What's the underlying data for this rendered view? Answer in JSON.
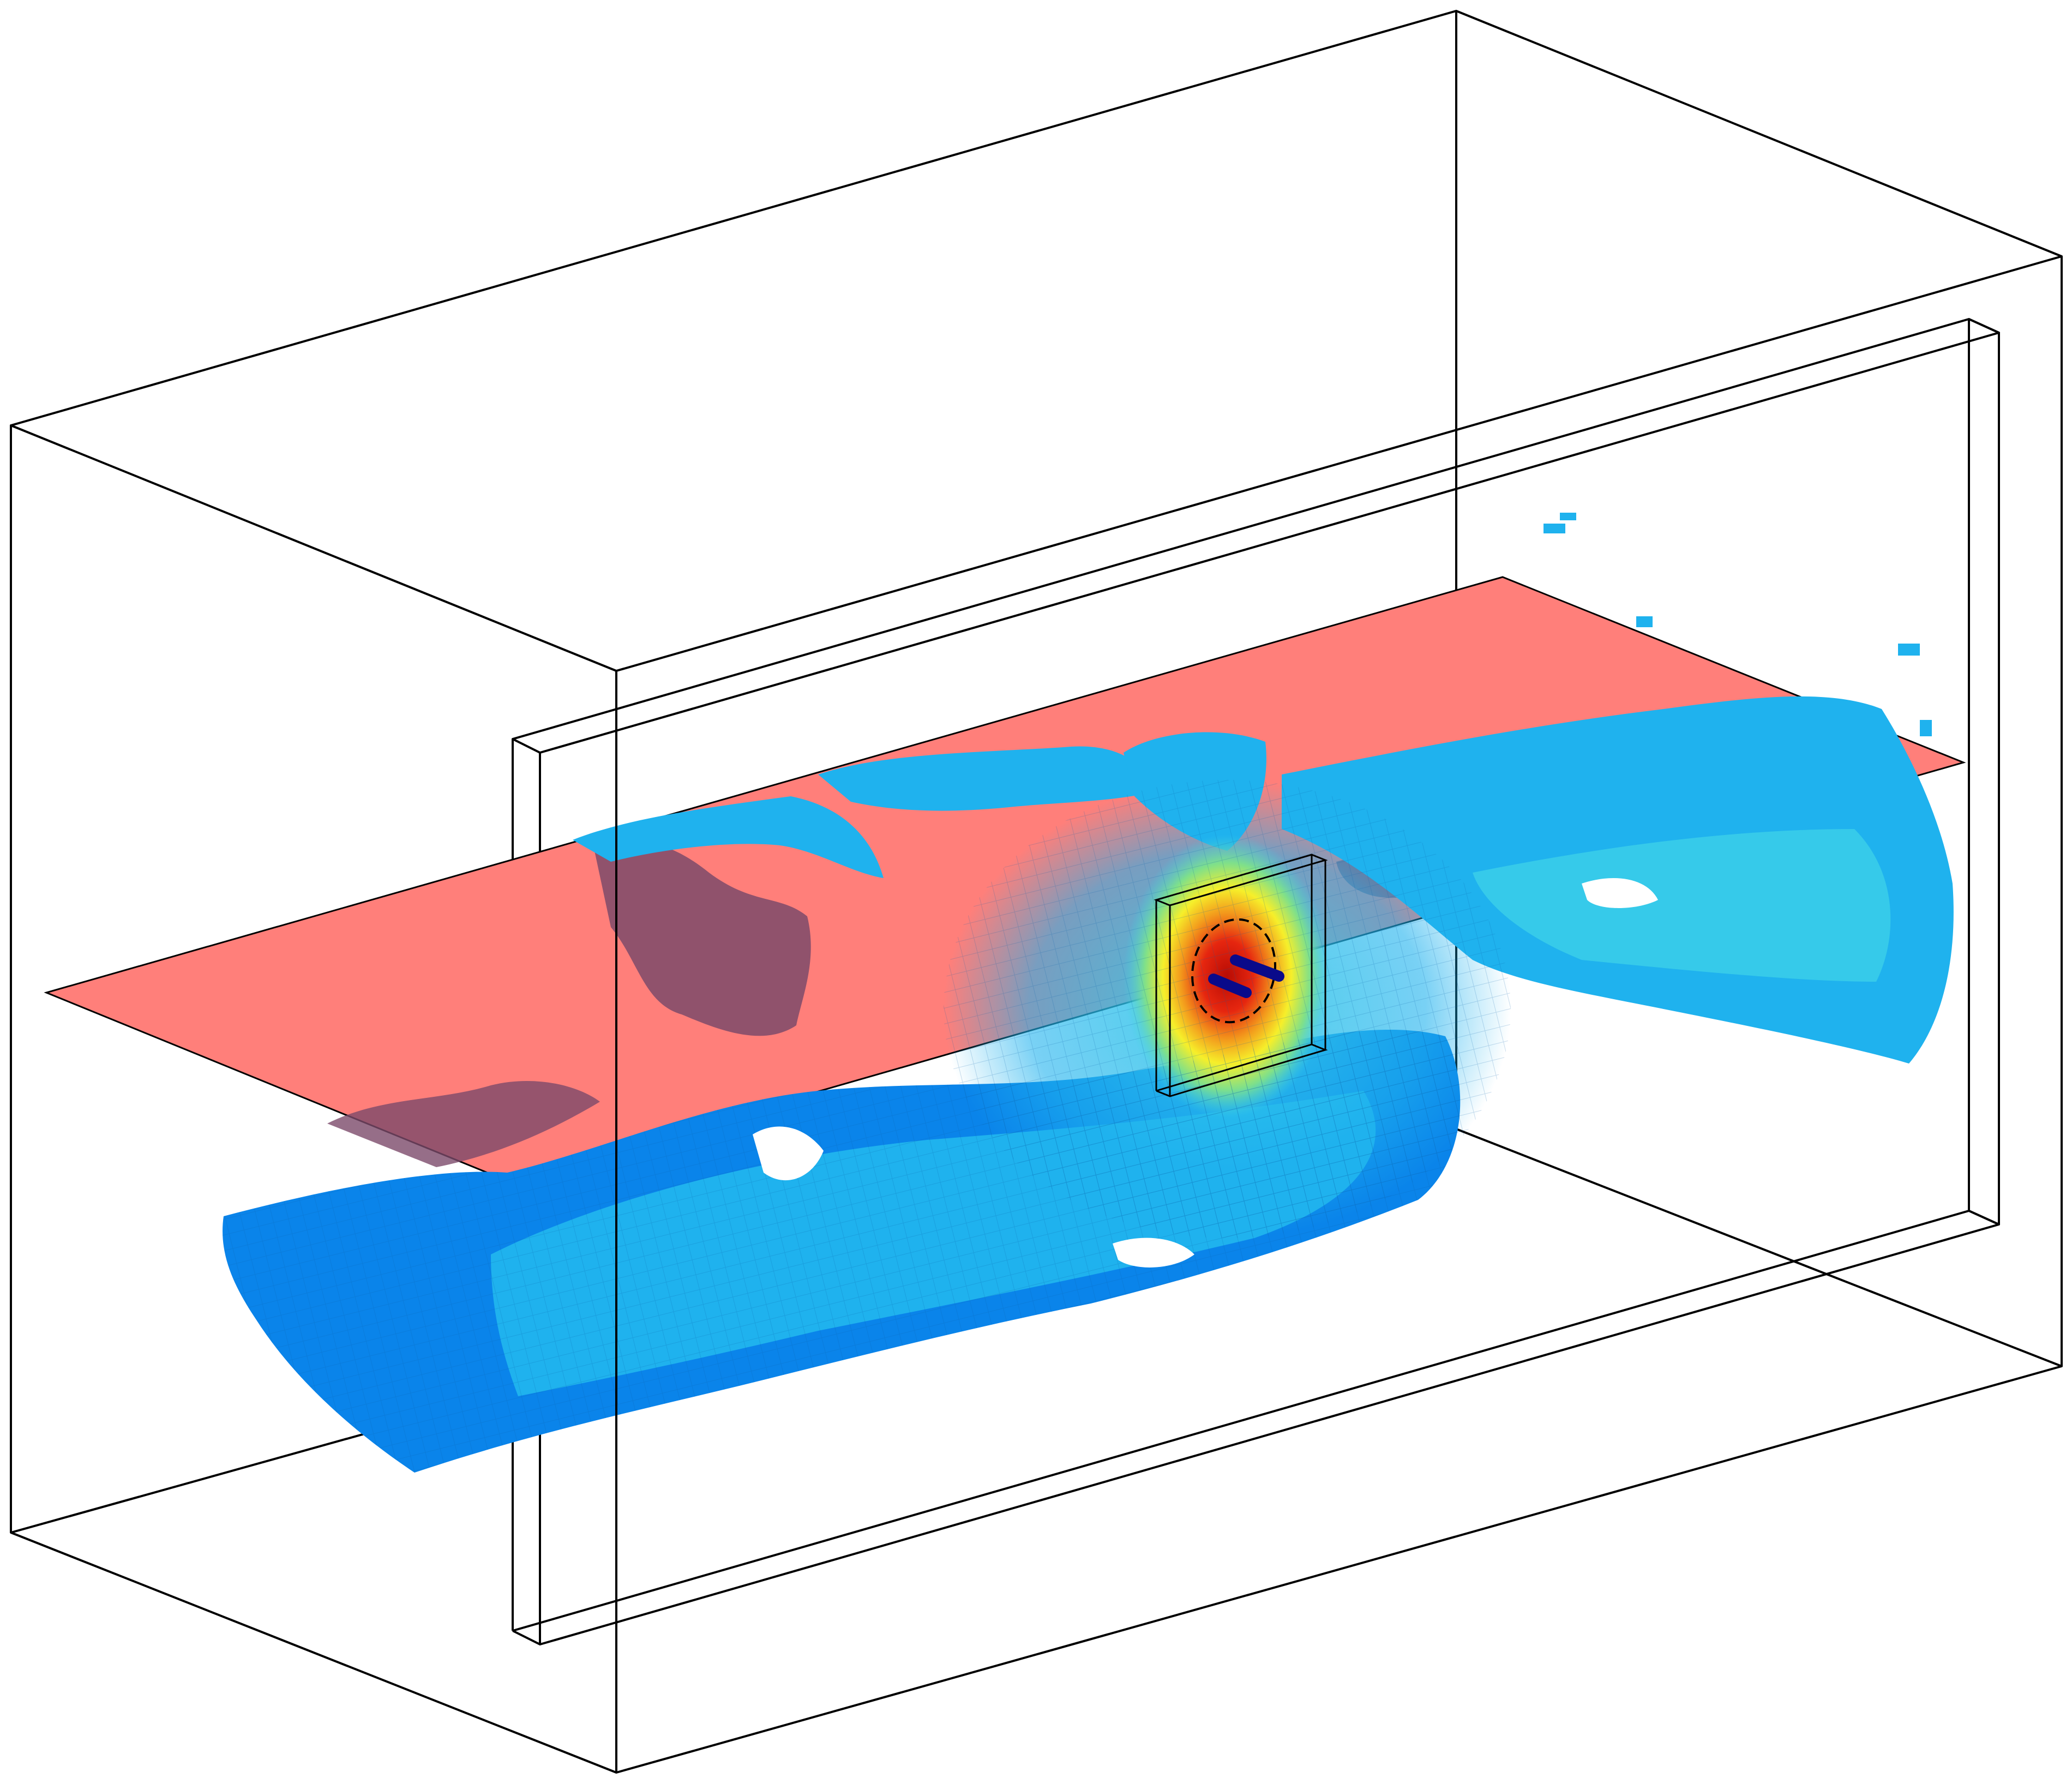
{
  "scene": {
    "colors": {
      "plane": "#ff7f7a",
      "plane_shadow": "#7c4a6a",
      "plume_outer": "#0a84ea",
      "plume_mid": "#1fb2ee",
      "plume_light": "#3ccfe8",
      "plume_green": "#7fe08a",
      "plume_yellow": "#f6ef2a",
      "plume_orange": "#f39a1c",
      "plume_red": "#e6260f",
      "source_rods": "#0a0a8a",
      "edge": "#000000"
    },
    "elements": [
      "outer-domain-box",
      "inner-wall-slab",
      "horizontal-plane",
      "concentration-plume",
      "source-box",
      "source-ellipse",
      "source-rods"
    ]
  }
}
